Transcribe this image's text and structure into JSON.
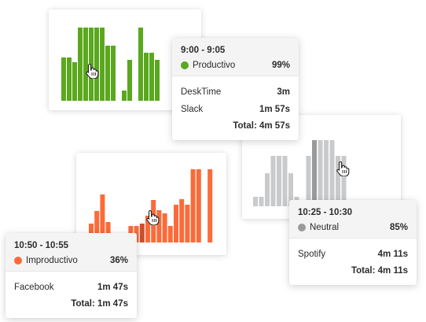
{
  "colors": {
    "productive": "#5aa81e",
    "unproductive": "#fb6b3a",
    "unproductive_dark": "#c8522e",
    "neutral": "#c9cacc",
    "neutral_dark": "#999a9c"
  },
  "tooltips": {
    "productive": {
      "time": "9:00 - 9:05",
      "category": "Productivo",
      "percent": "99%",
      "apps": [
        {
          "name": "DeskTime",
          "duration": "3m"
        },
        {
          "name": "Slack",
          "duration": "1m 57s"
        }
      ],
      "total": "Total: 4m 57s"
    },
    "unproductive": {
      "time": "10:50 - 10:55",
      "category": "Improductivo",
      "percent": "36%",
      "apps": [
        {
          "name": "Facebook",
          "duration": "1m 47s"
        }
      ],
      "total": "Total: 1m 47s"
    },
    "neutral": {
      "time": "10:25 - 10:30",
      "category": "Neutral",
      "percent": "85%",
      "apps": [
        {
          "name": "Spotify",
          "duration": "4m 11s"
        }
      ],
      "total": "Total: 4m 11s"
    }
  },
  "charts": {
    "productive": {
      "levels": [
        0.55,
        0.55,
        0.49,
        0.93,
        0.93,
        0.93,
        0.93,
        0.93,
        0.7,
        0.7,
        0,
        0.13,
        0.52,
        0,
        0.93,
        0.61,
        0.61,
        0.52
      ]
    },
    "unproductive": {
      "levels": [
        0.24,
        0.4,
        0.61,
        0.26,
        0,
        0,
        0,
        0.21,
        0.21,
        0.24,
        0.34,
        0.54,
        0.41,
        0.37,
        0.21,
        0.48,
        0.55,
        0.48,
        0.93,
        0.93,
        0,
        0.93
      ]
    },
    "neutral": {
      "levels": [
        0.12,
        0.12,
        0.42,
        0.64,
        0.64,
        0.64,
        0.42,
        0.12,
        0,
        0.64,
        0.84,
        0.84,
        0.84,
        0.84,
        0.64,
        0.64
      ]
    }
  }
}
